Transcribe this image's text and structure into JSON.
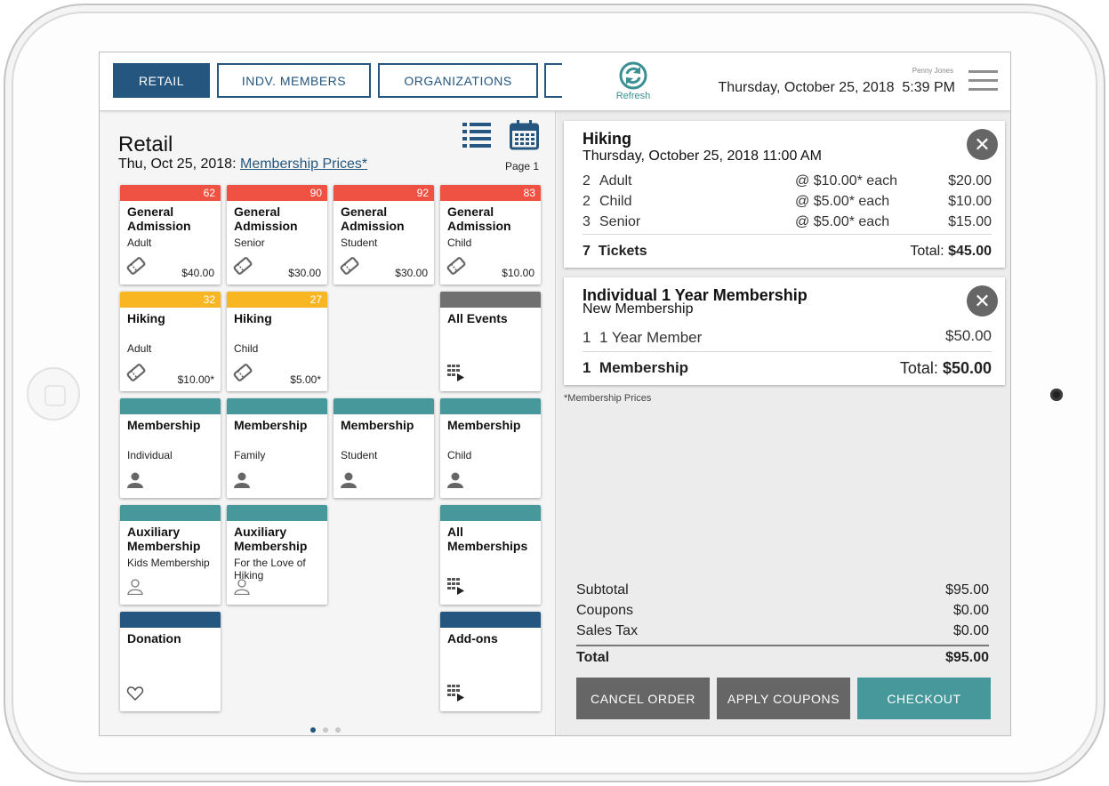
{
  "colors": {
    "primary": "#24567f",
    "teal": "#47989a",
    "red": "#ef5242",
    "yellow": "#f9b623",
    "gray_bar": "#707070",
    "button_gray": "#666666"
  },
  "header": {
    "tabs": [
      {
        "label": "RETAIL",
        "active": true
      },
      {
        "label": "INDV. MEMBERS",
        "active": false
      },
      {
        "label": "ORGANIZATIONS",
        "active": false
      }
    ],
    "refresh_label": "Refresh",
    "user_name": "Penny Jones",
    "date": "Thursday, October 25, 2018",
    "time": "5:39 PM",
    "menu_icon": "hamburger-icon"
  },
  "retail": {
    "title": "Retail",
    "date": "Thu, Oct 25, 2018:",
    "price_link": "Membership Prices*",
    "page_label": "Page 1"
  },
  "tiles": [
    {
      "name": "General Admission",
      "sub": "Adult",
      "count": "62",
      "price": "$40.00",
      "bar": "red",
      "icon": "ticket-icon"
    },
    {
      "name": "General Admission",
      "sub": "Senior",
      "count": "90",
      "price": "$30.00",
      "bar": "red",
      "icon": "ticket-icon"
    },
    {
      "name": "General Admission",
      "sub": "Student",
      "count": "92",
      "price": "$30.00",
      "bar": "red",
      "icon": "ticket-icon"
    },
    {
      "name": "General Admission",
      "sub": "Child",
      "count": "83",
      "price": "$10.00",
      "bar": "red",
      "icon": "ticket-icon"
    },
    {
      "name": "Hiking",
      "sub": "Adult",
      "count": "32",
      "price": "$10.00*",
      "bar": "yellow",
      "icon": "ticket-icon"
    },
    {
      "name": "Hiking",
      "sub": "Child",
      "count": "27",
      "price": "$5.00*",
      "bar": "yellow",
      "icon": "ticket-icon"
    },
    {
      "name": "All Events",
      "sub": "",
      "count": "",
      "price": "",
      "bar": "gray",
      "icon": "grid-arrow-icon"
    },
    {
      "name": "Membership",
      "sub": "Individual",
      "count": "",
      "price": "",
      "bar": "teal",
      "icon": "person-icon"
    },
    {
      "name": "Membership",
      "sub": "Family",
      "count": "",
      "price": "",
      "bar": "teal",
      "icon": "person-icon"
    },
    {
      "name": "Membership",
      "sub": "Student",
      "count": "",
      "price": "",
      "bar": "teal",
      "icon": "person-icon"
    },
    {
      "name": "Membership",
      "sub": "Child",
      "count": "",
      "price": "",
      "bar": "teal",
      "icon": "person-icon"
    },
    {
      "name": "Auxiliary Membership",
      "sub": "Kids Membership",
      "count": "",
      "price": "",
      "bar": "teal",
      "icon": "person-outline-icon"
    },
    {
      "name": "Auxiliary Membership",
      "sub": "For the Love of Hiking",
      "count": "",
      "price": "",
      "bar": "teal",
      "icon": "person-outline-icon"
    },
    {
      "name": "All Memberships",
      "sub": "",
      "count": "",
      "price": "",
      "bar": "teal",
      "icon": "grid-arrow-icon"
    },
    {
      "name": "Donation",
      "sub": "",
      "count": "",
      "price": "",
      "bar": "blue",
      "icon": "heart-icon"
    },
    {
      "name": "Add-ons",
      "sub": "",
      "count": "",
      "price": "",
      "bar": "blue",
      "icon": "grid-arrow-icon"
    }
  ],
  "cart": {
    "hiking": {
      "title": "Hiking",
      "subtitle": "Thursday, October 25, 2018 11:00 AM",
      "lines": [
        {
          "qty": "2",
          "name": "Adult",
          "each": "@ $10.00* each",
          "amount": "$20.00"
        },
        {
          "qty": "2",
          "name": "Child",
          "each": "@ $5.00* each",
          "amount": "$10.00"
        },
        {
          "qty": "3",
          "name": "Senior",
          "each": "@ $5.00* each",
          "amount": "$15.00"
        }
      ],
      "count": "7",
      "count_label": "Tickets",
      "total_label": "Total:",
      "total": "$45.00"
    },
    "membership": {
      "title": "Individual 1 Year Membership",
      "subtitle": "New Membership",
      "line": {
        "qty": "1",
        "name": "1 Year Member",
        "amount": "$50.00"
      },
      "count": "1",
      "count_label": "Membership",
      "total_label": "Total:",
      "total": "$50.00"
    },
    "note": "*Membership Prices",
    "summary": {
      "subtotal_label": "Subtotal",
      "subtotal": "$95.00",
      "coupons_label": "Coupons",
      "coupons": "$0.00",
      "tax_label": "Sales Tax",
      "tax": "$0.00",
      "total_label": "Total",
      "total": "$95.00"
    },
    "buttons": {
      "cancel": "CANCEL ORDER",
      "coupons": "APPLY COUPONS",
      "checkout": "CHECKOUT"
    }
  },
  "pagination": {
    "pages": 3,
    "current": 1
  }
}
